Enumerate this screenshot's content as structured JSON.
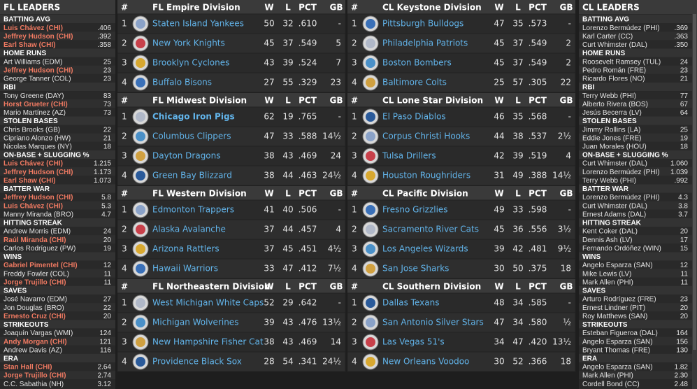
{
  "fl_leaders": {
    "title": "FL LEADERS",
    "categories": [
      {
        "name": "BATTING AVG",
        "leaders": [
          {
            "player": "Luis Chávez (CHI)",
            "value": ".406",
            "highlight": true
          },
          {
            "player": "Jeffrey Hudson (CHI)",
            "value": ".392",
            "highlight": true
          },
          {
            "player": "Earl Shaw (CHI)",
            "value": ".358",
            "highlight": true
          }
        ]
      },
      {
        "name": "HOME RUNS",
        "leaders": [
          {
            "player": "Art Williams (EDM)",
            "value": "25"
          },
          {
            "player": "Jeffrey Hudson (CHI)",
            "value": "23",
            "highlight": true
          },
          {
            "player": "George Tanner (COL)",
            "value": "23"
          }
        ]
      },
      {
        "name": "RBI",
        "leaders": [
          {
            "player": "Tony Greene (DAY)",
            "value": "83"
          },
          {
            "player": "Horst Grueter (CHI)",
            "value": "73",
            "highlight": true
          },
          {
            "player": "Mario Martínez (AZ)",
            "value": "73"
          }
        ]
      },
      {
        "name": "STOLEN BASES",
        "leaders": [
          {
            "player": "Chris Brooks (GB)",
            "value": "22"
          },
          {
            "player": "Cipriano Alonzo (HW)",
            "value": "21"
          },
          {
            "player": "Nicolas Marques (NY)",
            "value": "18"
          }
        ]
      },
      {
        "name": "ON-BASE + SLUGGING %",
        "leaders": [
          {
            "player": "Luis Chávez (CHI)",
            "value": "1.215",
            "highlight": true
          },
          {
            "player": "Jeffrey Hudson (CHI)",
            "value": "1.173",
            "highlight": true
          },
          {
            "player": "Earl Shaw (CHI)",
            "value": "1.073",
            "highlight": true
          }
        ]
      },
      {
        "name": "BATTER WAR",
        "leaders": [
          {
            "player": "Jeffrey Hudson (CHI)",
            "value": "5.8",
            "highlight": true
          },
          {
            "player": "Luis Chávez (CHI)",
            "value": "5.3",
            "highlight": true
          },
          {
            "player": "Manny Miranda (BRO)",
            "value": "4.7"
          }
        ]
      },
      {
        "name": "HITTING STREAK",
        "leaders": [
          {
            "player": "Andrew Morris (EDM)",
            "value": "24"
          },
          {
            "player": "Raúl Miranda (CHI)",
            "value": "20",
            "highlight": true
          },
          {
            "player": "Carlos Rodríguez (PW)",
            "value": "19"
          }
        ]
      },
      {
        "name": "WINS",
        "leaders": [
          {
            "player": "Gabriel Pimentel (CHI)",
            "value": "12",
            "highlight": true
          },
          {
            "player": "Freddy Fowler (COL)",
            "value": "11"
          },
          {
            "player": "Jorge Trujillo (CHI)",
            "value": "11",
            "highlight": true
          }
        ]
      },
      {
        "name": "SAVES",
        "leaders": [
          {
            "player": "José Navarro (EDM)",
            "value": "27"
          },
          {
            "player": "Jon Douglas (BRO)",
            "value": "22"
          },
          {
            "player": "Ernesto Cruz (CHI)",
            "value": "20",
            "highlight": true
          }
        ]
      },
      {
        "name": "STRIKEOUTS",
        "leaders": [
          {
            "player": "Joaquín Vargas (WMI)",
            "value": "124"
          },
          {
            "player": "Andy Morgan (CHI)",
            "value": "121",
            "highlight": true
          },
          {
            "player": "Andrew Davis (AZ)",
            "value": "116"
          }
        ]
      },
      {
        "name": "ERA",
        "leaders": [
          {
            "player": "Stan Hall (CHI)",
            "value": "2.64",
            "highlight": true
          },
          {
            "player": "Jorge Trujillo (CHI)",
            "value": "2.74",
            "highlight": true
          },
          {
            "player": "C.C. Sabathia (NH)",
            "value": "3.12"
          }
        ]
      }
    ]
  },
  "cl_leaders": {
    "title": "CL LEADERS",
    "categories": [
      {
        "name": "BATTING AVG",
        "leaders": [
          {
            "player": "Lorenzo Bermúdez (PHI)",
            "value": ".369"
          },
          {
            "player": "Karl Carter (CC)",
            "value": ".363"
          },
          {
            "player": "Curt Whimster (DAL)",
            "value": ".350"
          }
        ]
      },
      {
        "name": "HOME RUNS",
        "leaders": [
          {
            "player": "Roosevelt Ramsey (TUL)",
            "value": "24"
          },
          {
            "player": "Pedro Román (FRE)",
            "value": "23"
          },
          {
            "player": "Ricardo Flores (NO)",
            "value": "21"
          }
        ]
      },
      {
        "name": "RBI",
        "leaders": [
          {
            "player": "Terry Webb (PHI)",
            "value": "77"
          },
          {
            "player": "Alberto Rivera (BOS)",
            "value": "67"
          },
          {
            "player": "Jesús Becerra (LV)",
            "value": "64"
          }
        ]
      },
      {
        "name": "STOLEN BASES",
        "leaders": [
          {
            "player": "Jimmy Rollins (LA)",
            "value": "25"
          },
          {
            "player": "Eddie Jones (FRE)",
            "value": "19"
          },
          {
            "player": "Juan Morales (HOU)",
            "value": "18"
          }
        ]
      },
      {
        "name": "ON-BASE + SLUGGING %",
        "leaders": [
          {
            "player": "Curt Whimster (DAL)",
            "value": "1.060"
          },
          {
            "player": "Lorenzo Bermúdez (PHI)",
            "value": "1.039"
          },
          {
            "player": "Terry Webb (PHI)",
            "value": ".992"
          }
        ]
      },
      {
        "name": "BATTER WAR",
        "leaders": [
          {
            "player": "Lorenzo Bermúdez (PHI)",
            "value": "4.3"
          },
          {
            "player": "Curt Whimster (DAL)",
            "value": "3.8"
          },
          {
            "player": "Ernest Adams (DAL)",
            "value": "3.7"
          }
        ]
      },
      {
        "name": "HITTING STREAK",
        "leaders": [
          {
            "player": "Kent Coker (DAL)",
            "value": "20"
          },
          {
            "player": "Dennis Ash (LV)",
            "value": "17"
          },
          {
            "player": "Fernando Ordóñez (WIN)",
            "value": "15"
          }
        ]
      },
      {
        "name": "WINS",
        "leaders": [
          {
            "player": "Angelo Esparza (SAN)",
            "value": "12"
          },
          {
            "player": "Mike Lewis (LV)",
            "value": "11"
          },
          {
            "player": "Mark Allen (PHI)",
            "value": "11"
          }
        ]
      },
      {
        "name": "SAVES",
        "leaders": [
          {
            "player": "Arturo Rodríguez (FRE)",
            "value": "23"
          },
          {
            "player": "Ernest Lindner (PIT)",
            "value": "20"
          },
          {
            "player": "Roy Matthews (SAN)",
            "value": "20"
          }
        ]
      },
      {
        "name": "STRIKEOUTS",
        "leaders": [
          {
            "player": "Esteban Figueroa (DAL)",
            "value": "164"
          },
          {
            "player": "Angelo Esparza (SAN)",
            "value": "156"
          },
          {
            "player": "Bryant Thomas (FRE)",
            "value": "130"
          }
        ]
      },
      {
        "name": "ERA",
        "leaders": [
          {
            "player": "Angelo Esparza (SAN)",
            "value": "1.82"
          },
          {
            "player": "Mark Allen (PHI)",
            "value": "2.30"
          },
          {
            "player": "Cordell Bond (CC)",
            "value": "2.48"
          }
        ]
      }
    ]
  },
  "columns": {
    "rank": "#",
    "w": "W",
    "l": "L",
    "pct": "PCT",
    "gb": "GB"
  },
  "fl_divisions": [
    {
      "name": "FL Empire Division",
      "teams": [
        {
          "rank": 1,
          "team": "Staten Island Yankees",
          "w": 50,
          "l": 32,
          "pct": ".610",
          "gb": "-"
        },
        {
          "rank": 2,
          "team": "New York Knights",
          "w": 45,
          "l": 37,
          "pct": ".549",
          "gb": "5"
        },
        {
          "rank": 3,
          "team": "Brooklyn Cyclones",
          "w": 43,
          "l": 39,
          "pct": ".524",
          "gb": "7"
        },
        {
          "rank": 4,
          "team": "Buffalo Bisons",
          "w": 27,
          "l": 55,
          "pct": ".329",
          "gb": "23"
        }
      ]
    },
    {
      "name": "FL Midwest Division",
      "teams": [
        {
          "rank": 1,
          "team": "Chicago Iron Pigs",
          "w": 62,
          "l": 19,
          "pct": ".765",
          "gb": "-",
          "bold": true
        },
        {
          "rank": 2,
          "team": "Columbus Clippers",
          "w": 47,
          "l": 33,
          "pct": ".588",
          "gb": "14½"
        },
        {
          "rank": 3,
          "team": "Dayton Dragons",
          "w": 38,
          "l": 43,
          "pct": ".469",
          "gb": "24"
        },
        {
          "rank": 4,
          "team": "Green Bay Blizzard",
          "w": 38,
          "l": 44,
          "pct": ".463",
          "gb": "24½"
        }
      ]
    },
    {
      "name": "FL Western Division",
      "teams": [
        {
          "rank": 1,
          "team": "Edmonton Trappers",
          "w": 41,
          "l": 40,
          "pct": ".506",
          "gb": "-"
        },
        {
          "rank": 2,
          "team": "Alaska Avalanche",
          "w": 37,
          "l": 44,
          "pct": ".457",
          "gb": "4"
        },
        {
          "rank": 3,
          "team": "Arizona Rattlers",
          "w": 37,
          "l": 45,
          "pct": ".451",
          "gb": "4½"
        },
        {
          "rank": 4,
          "team": "Hawaii Warriors",
          "w": 33,
          "l": 47,
          "pct": ".412",
          "gb": "7½"
        }
      ]
    },
    {
      "name": "FL Northeastern Division",
      "teams": [
        {
          "rank": 1,
          "team": "West Michigan White Caps",
          "w": 52,
          "l": 29,
          "pct": ".642",
          "gb": "-"
        },
        {
          "rank": 2,
          "team": "Michigan Wolverines",
          "w": 39,
          "l": 43,
          "pct": ".476",
          "gb": "13½"
        },
        {
          "rank": 3,
          "team": "New Hampshire Fisher Cat",
          "w": 38,
          "l": 43,
          "pct": ".469",
          "gb": "14"
        },
        {
          "rank": 4,
          "team": "Providence Black Sox",
          "w": 28,
          "l": 54,
          "pct": ".341",
          "gb": "24½"
        }
      ]
    }
  ],
  "cl_divisions": [
    {
      "name": "CL Keystone Division",
      "teams": [
        {
          "rank": 1,
          "team": "Pittsburgh Bulldogs",
          "w": 47,
          "l": 35,
          "pct": ".573",
          "gb": "-"
        },
        {
          "rank": 2,
          "team": "Philadelphia Patriots",
          "w": 45,
          "l": 37,
          "pct": ".549",
          "gb": "2"
        },
        {
          "rank": 3,
          "team": "Boston Bombers",
          "w": 45,
          "l": 37,
          "pct": ".549",
          "gb": "2"
        },
        {
          "rank": 4,
          "team": "Baltimore Colts",
          "w": 25,
          "l": 57,
          "pct": ".305",
          "gb": "22"
        }
      ]
    },
    {
      "name": "CL Lone Star Division",
      "teams": [
        {
          "rank": 1,
          "team": "El Paso Diablos",
          "w": 46,
          "l": 35,
          "pct": ".568",
          "gb": "-"
        },
        {
          "rank": 2,
          "team": "Corpus Christi Hooks",
          "w": 44,
          "l": 38,
          "pct": ".537",
          "gb": "2½"
        },
        {
          "rank": 3,
          "team": "Tulsa Drillers",
          "w": 42,
          "l": 39,
          "pct": ".519",
          "gb": "4"
        },
        {
          "rank": 4,
          "team": "Houston Roughriders",
          "w": 31,
          "l": 49,
          "pct": ".388",
          "gb": "14½"
        }
      ]
    },
    {
      "name": "CL Pacific Division",
      "teams": [
        {
          "rank": 1,
          "team": "Fresno Grizzlies",
          "w": 49,
          "l": 33,
          "pct": ".598",
          "gb": "-"
        },
        {
          "rank": 2,
          "team": "Sacramento River Cats",
          "w": 45,
          "l": 36,
          "pct": ".556",
          "gb": "3½"
        },
        {
          "rank": 3,
          "team": "Los Angeles Wizards",
          "w": 39,
          "l": 42,
          "pct": ".481",
          "gb": "9½"
        },
        {
          "rank": 4,
          "team": "San Jose Sharks",
          "w": 30,
          "l": 50,
          "pct": ".375",
          "gb": "18"
        }
      ]
    },
    {
      "name": "CL Southern Division",
      "teams": [
        {
          "rank": 1,
          "team": "Dallas Texans",
          "w": 48,
          "l": 34,
          "pct": ".585",
          "gb": "-"
        },
        {
          "rank": 2,
          "team": "San Antonio Silver Stars",
          "w": 47,
          "l": 34,
          "pct": ".580",
          "gb": "½"
        },
        {
          "rank": 3,
          "team": "Las Vegas 51's",
          "w": 34,
          "l": 47,
          "pct": ".420",
          "gb": "13½"
        },
        {
          "rank": 4,
          "team": "New Orleans Voodoo",
          "w": 30,
          "l": 52,
          "pct": ".366",
          "gb": "18"
        }
      ]
    }
  ]
}
